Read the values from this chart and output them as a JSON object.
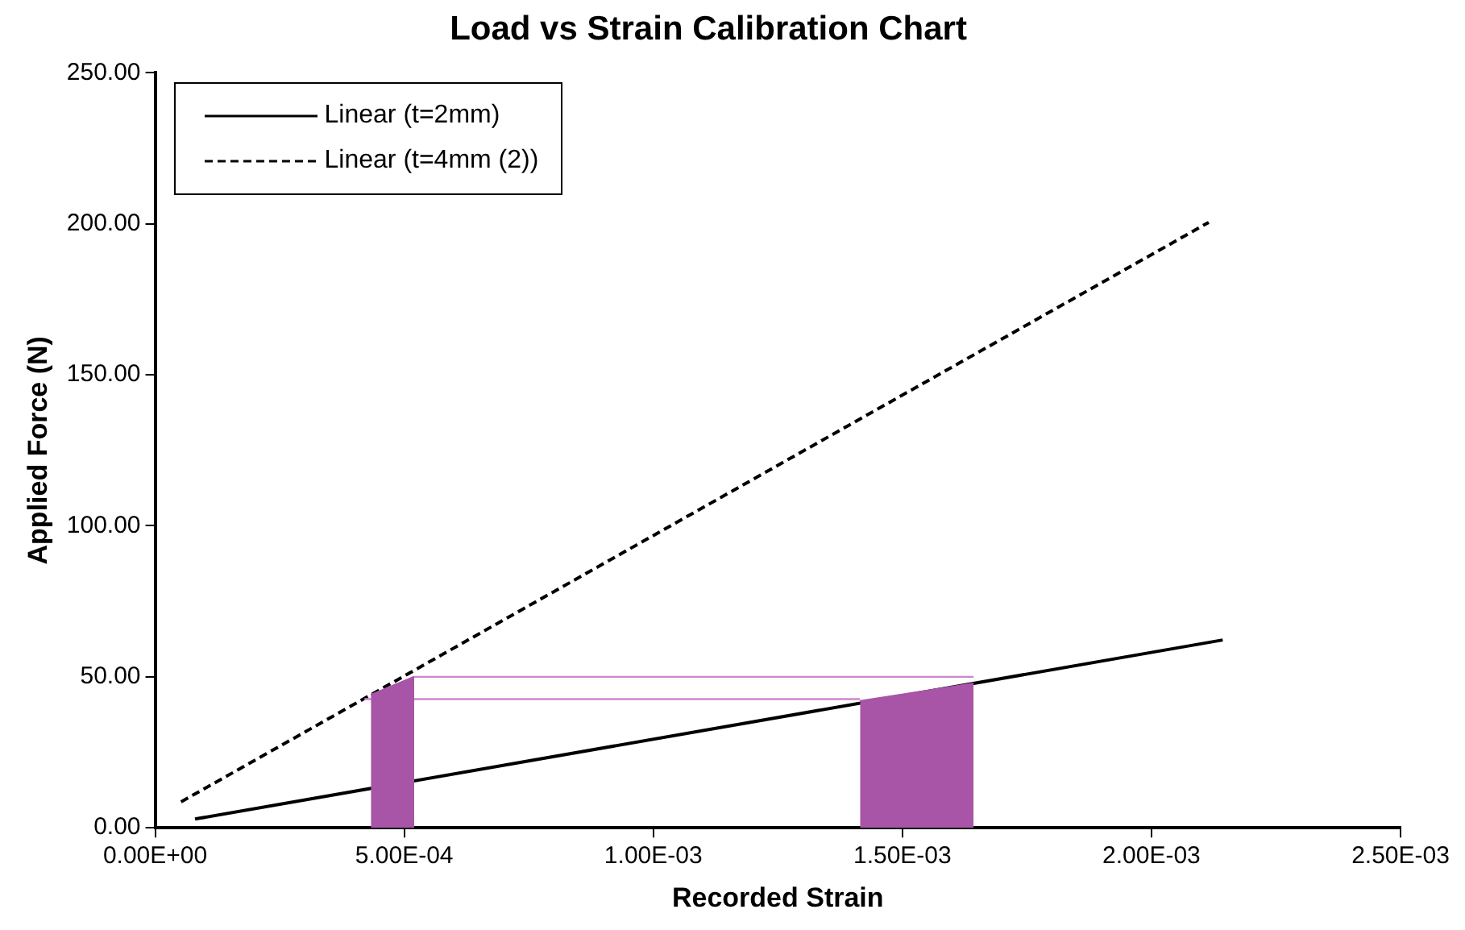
{
  "chart_data": {
    "type": "line",
    "title": "Load vs Strain Calibration Chart",
    "xlabel": "Recorded Strain",
    "ylabel": "Applied Force (N)",
    "series": [
      {
        "type": "area",
        "color": "#a855a8",
        "x": [
          0.000433,
          0.00052
        ],
        "values": [
          44,
          50
        ]
      },
      {
        "type": "area",
        "color": "#a855a8",
        "x": [
          0.001415,
          0.001643
        ],
        "values": [
          42,
          47.8
        ]
      },
      {
        "color": "#cc88cc",
        "x": [
          0.00052,
          0.001643
        ],
        "values": [
          50,
          50
        ]
      },
      {
        "color": "#cc88cc",
        "x": [
          0.00042,
          0.001415
        ],
        "values": [
          42.6,
          42.6
        ]
      },
      {
        "name": "Linear (t=2mm)",
        "color": "#000000",
        "line_style": "solid",
        "x": [
          8e-05,
          0.002143
        ],
        "values": [
          2.9,
          62.2
        ]
      },
      {
        "name": "Linear (t=4mm (2))",
        "color": "#000000",
        "line_style": "dashed",
        "x": [
          5.2e-05,
          0.002115
        ],
        "values": [
          8.6,
          200.5
        ]
      }
    ],
    "xlim": [
      0,
      0.0025
    ],
    "xticks": [
      {
        "value": 0,
        "label": "0.00E+00"
      },
      {
        "value": 0.0005,
        "label": "5.00E-04"
      },
      {
        "value": 0.001,
        "label": "1.00E-03"
      },
      {
        "value": 0.0015,
        "label": "1.50E-03"
      },
      {
        "value": 0.002,
        "label": "2.00E-03"
      },
      {
        "value": 0.0025,
        "label": "2.50E-03"
      }
    ],
    "ylim": [
      0,
      250
    ],
    "yticks": [
      {
        "value": 0,
        "label": "0.00"
      },
      {
        "value": 50,
        "label": "50.00"
      },
      {
        "value": 100,
        "label": "100.00"
      },
      {
        "value": 150,
        "label": "150.00"
      },
      {
        "value": 200,
        "label": "200.00"
      },
      {
        "value": 250,
        "label": "250.00"
      }
    ],
    "grid": false,
    "legend": "top left",
    "marker": "none"
  }
}
